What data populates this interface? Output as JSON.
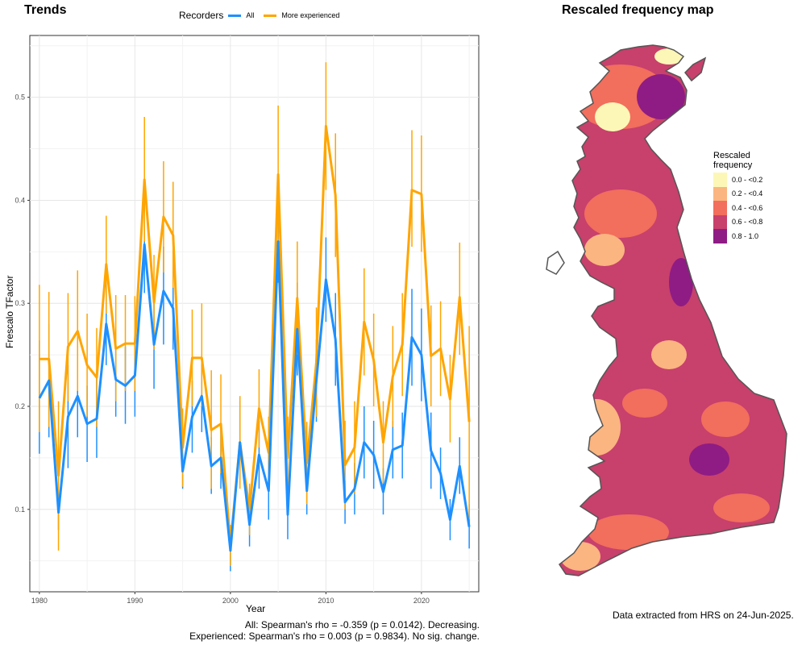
{
  "left_panel": {
    "title": "Trends",
    "legend_title": "Recorders",
    "footer_all": "All: Spearman's rho = -0.359 (p = 0.0142). Decreasing.",
    "footer_experienced": "Experienced: Spearman's rho = 0.003 (p = 0.9834). No sig. change."
  },
  "right_panel": {
    "title": "Rescaled frequency map",
    "legend_title": "Rescaled frequency",
    "legend_items": [
      {
        "label": "0.0 - <0.2",
        "color": "#fcf7b6"
      },
      {
        "label": "0.2 - <0.4",
        "color": "#fbb580"
      },
      {
        "label": "0.4 - <0.6",
        "color": "#f26e5d"
      },
      {
        "label": "0.6 - <0.8",
        "color": "#c8406c"
      },
      {
        "label": "0.8 - 1.0",
        "color": "#8e1c84"
      }
    ],
    "source_note": "Data extracted from HRS on 24-Jun-2025."
  },
  "chart_data": {
    "type": "line",
    "title": "Trends",
    "xlabel": "Year",
    "ylabel": "Frescalo TFactor",
    "xlim": [
      1979,
      2026
    ],
    "ylim": [
      0.02,
      0.56
    ],
    "x_ticks": [
      1980,
      1990,
      2000,
      2010,
      2020
    ],
    "y_ticks": [
      0.1,
      0.2,
      0.3,
      0.4,
      0.5
    ],
    "grid": true,
    "legend_position": "top",
    "x": [
      1980,
      1981,
      1982,
      1983,
      1984,
      1985,
      1986,
      1987,
      1988,
      1989,
      1990,
      1991,
      1992,
      1993,
      1994,
      1995,
      1996,
      1997,
      1998,
      1999,
      2000,
      2001,
      2002,
      2003,
      2004,
      2005,
      2006,
      2007,
      2008,
      2009,
      2010,
      2011,
      2012,
      2013,
      2014,
      2015,
      2016,
      2017,
      2018,
      2019,
      2020,
      2021,
      2022,
      2023,
      2024,
      2025
    ],
    "series": [
      {
        "name": "All",
        "color": "#1e90ff",
        "values": [
          0.208,
          0.225,
          0.097,
          0.19,
          0.21,
          0.183,
          0.188,
          0.28,
          0.226,
          0.22,
          0.23,
          0.357,
          0.26,
          0.312,
          0.295,
          0.137,
          0.19,
          0.21,
          0.142,
          0.15,
          0.06,
          0.165,
          0.085,
          0.153,
          0.118,
          0.36,
          0.095,
          0.275,
          0.118,
          0.225,
          0.323,
          0.265,
          0.107,
          0.12,
          0.165,
          0.153,
          0.117,
          0.158,
          0.162,
          0.267,
          0.25,
          0.157,
          0.135,
          0.09,
          0.142,
          0.083
        ],
        "lower": [
          0.154,
          0.17,
          0.08,
          0.14,
          0.17,
          0.146,
          0.15,
          0.24,
          0.19,
          0.183,
          0.19,
          0.31,
          0.217,
          0.26,
          0.255,
          0.12,
          0.155,
          0.175,
          0.115,
          0.12,
          0.04,
          0.125,
          0.064,
          0.12,
          0.09,
          0.32,
          0.071,
          0.23,
          0.095,
          0.185,
          0.282,
          0.22,
          0.086,
          0.095,
          0.13,
          0.12,
          0.095,
          0.13,
          0.13,
          0.22,
          0.205,
          0.12,
          0.11,
          0.07,
          0.115,
          0.062
        ],
        "upper": [
          0.264,
          0.28,
          0.115,
          0.24,
          0.25,
          0.22,
          0.228,
          0.32,
          0.263,
          0.258,
          0.27,
          0.405,
          0.303,
          0.355,
          0.335,
          0.155,
          0.225,
          0.245,
          0.17,
          0.18,
          0.08,
          0.205,
          0.106,
          0.186,
          0.147,
          0.4,
          0.12,
          0.32,
          0.141,
          0.265,
          0.364,
          0.31,
          0.128,
          0.145,
          0.2,
          0.186,
          0.14,
          0.186,
          0.194,
          0.314,
          0.295,
          0.194,
          0.16,
          0.11,
          0.17,
          0.105
        ]
      },
      {
        "name": "More experienced",
        "color": "#ffa500",
        "values": [
          0.246,
          0.246,
          0.133,
          0.258,
          0.273,
          0.24,
          0.228,
          0.338,
          0.256,
          0.261,
          0.261,
          0.42,
          0.301,
          0.384,
          0.366,
          0.16,
          0.247,
          0.247,
          0.177,
          0.183,
          0.065,
          0.165,
          0.1,
          0.198,
          0.155,
          0.425,
          0.15,
          0.305,
          0.145,
          0.243,
          0.472,
          0.405,
          0.143,
          0.16,
          0.282,
          0.245,
          0.165,
          0.229,
          0.26,
          0.41,
          0.406,
          0.249,
          0.256,
          0.207,
          0.306,
          0.185
        ],
        "lower": [
          0.175,
          0.18,
          0.06,
          0.205,
          0.215,
          0.19,
          0.18,
          0.29,
          0.205,
          0.215,
          0.215,
          0.36,
          0.255,
          0.33,
          0.315,
          0.122,
          0.2,
          0.2,
          0.12,
          0.135,
          0.045,
          0.12,
          0.075,
          0.16,
          0.12,
          0.36,
          0.11,
          0.25,
          0.105,
          0.19,
          0.41,
          0.345,
          0.1,
          0.115,
          0.23,
          0.2,
          0.125,
          0.18,
          0.21,
          0.355,
          0.35,
          0.2,
          0.21,
          0.165,
          0.25,
          0.09
        ],
        "upper": [
          0.318,
          0.311,
          0.205,
          0.31,
          0.332,
          0.29,
          0.276,
          0.385,
          0.308,
          0.308,
          0.307,
          0.481,
          0.347,
          0.438,
          0.418,
          0.198,
          0.294,
          0.3,
          0.235,
          0.231,
          0.085,
          0.21,
          0.125,
          0.236,
          0.19,
          0.492,
          0.19,
          0.36,
          0.185,
          0.296,
          0.534,
          0.465,
          0.186,
          0.205,
          0.334,
          0.29,
          0.205,
          0.278,
          0.31,
          0.468,
          0.463,
          0.298,
          0.302,
          0.25,
          0.359,
          0.278
        ]
      }
    ]
  }
}
